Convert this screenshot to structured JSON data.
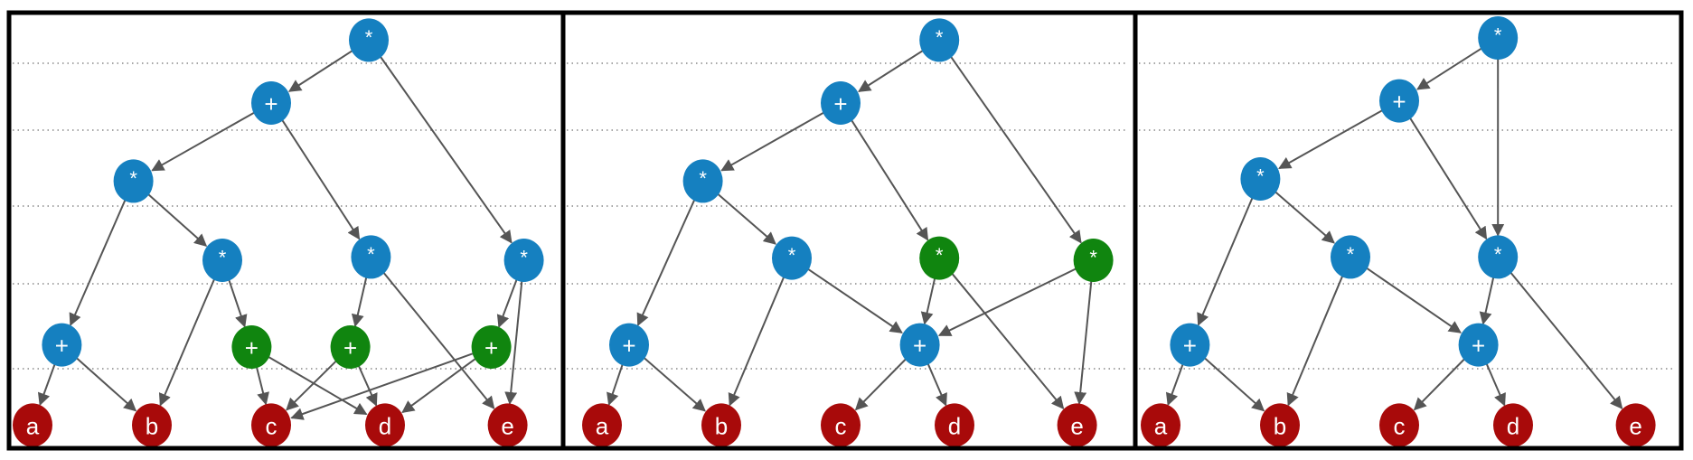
{
  "colors": {
    "op_node": "#1580c0",
    "shared_node": "#10850f",
    "leaf_node": "#a80a0a",
    "edge": "#555555",
    "gridline": "#888888",
    "frame": "#000000"
  },
  "panels": [
    {
      "nodes": [
        {
          "id": "r",
          "label": "*",
          "kind": "op"
        },
        {
          "id": "p1",
          "label": "+",
          "kind": "op"
        },
        {
          "id": "m1",
          "label": "*",
          "kind": "op"
        },
        {
          "id": "m2",
          "label": "*",
          "kind": "op"
        },
        {
          "id": "m3",
          "label": "*",
          "kind": "op"
        },
        {
          "id": "m4",
          "label": "*",
          "kind": "op"
        },
        {
          "id": "p2",
          "label": "+",
          "kind": "op"
        },
        {
          "id": "g1",
          "label": "+",
          "kind": "shared"
        },
        {
          "id": "g2",
          "label": "+",
          "kind": "shared"
        },
        {
          "id": "g3",
          "label": "+",
          "kind": "shared"
        },
        {
          "id": "a",
          "label": "a",
          "kind": "leaf"
        },
        {
          "id": "b",
          "label": "b",
          "kind": "leaf"
        },
        {
          "id": "c",
          "label": "c",
          "kind": "leaf"
        },
        {
          "id": "d",
          "label": "d",
          "kind": "leaf"
        },
        {
          "id": "e",
          "label": "e",
          "kind": "leaf"
        }
      ],
      "edges": [
        [
          "r",
          "p1"
        ],
        [
          "r",
          "m4"
        ],
        [
          "p1",
          "m1"
        ],
        [
          "p1",
          "m3"
        ],
        [
          "m1",
          "p2"
        ],
        [
          "m1",
          "m2"
        ],
        [
          "m2",
          "b"
        ],
        [
          "m2",
          "g1"
        ],
        [
          "m3",
          "g2"
        ],
        [
          "m3",
          "e"
        ],
        [
          "m4",
          "g3"
        ],
        [
          "m4",
          "e"
        ],
        [
          "p2",
          "a"
        ],
        [
          "p2",
          "b"
        ],
        [
          "g1",
          "c"
        ],
        [
          "g1",
          "d"
        ],
        [
          "g2",
          "c"
        ],
        [
          "g2",
          "d"
        ],
        [
          "g3",
          "c"
        ],
        [
          "g3",
          "d"
        ]
      ]
    },
    {
      "nodes": [
        {
          "id": "r",
          "label": "*",
          "kind": "op"
        },
        {
          "id": "p1",
          "label": "+",
          "kind": "op"
        },
        {
          "id": "m1",
          "label": "*",
          "kind": "op"
        },
        {
          "id": "m2",
          "label": "*",
          "kind": "op"
        },
        {
          "id": "m3",
          "label": "*",
          "kind": "shared"
        },
        {
          "id": "m4",
          "label": "*",
          "kind": "shared"
        },
        {
          "id": "p2",
          "label": "+",
          "kind": "op"
        },
        {
          "id": "p3",
          "label": "+",
          "kind": "op"
        },
        {
          "id": "a",
          "label": "a",
          "kind": "leaf"
        },
        {
          "id": "b",
          "label": "b",
          "kind": "leaf"
        },
        {
          "id": "c",
          "label": "c",
          "kind": "leaf"
        },
        {
          "id": "d",
          "label": "d",
          "kind": "leaf"
        },
        {
          "id": "e",
          "label": "e",
          "kind": "leaf"
        }
      ],
      "edges": [
        [
          "r",
          "p1"
        ],
        [
          "r",
          "m4"
        ],
        [
          "p1",
          "m1"
        ],
        [
          "p1",
          "m3"
        ],
        [
          "m1",
          "p2"
        ],
        [
          "m1",
          "m2"
        ],
        [
          "m2",
          "b"
        ],
        [
          "m2",
          "p3"
        ],
        [
          "m3",
          "p3"
        ],
        [
          "m3",
          "e"
        ],
        [
          "m4",
          "p3"
        ],
        [
          "m4",
          "e"
        ],
        [
          "p2",
          "a"
        ],
        [
          "p2",
          "b"
        ],
        [
          "p3",
          "c"
        ],
        [
          "p3",
          "d"
        ]
      ]
    },
    {
      "nodes": [
        {
          "id": "r",
          "label": "*",
          "kind": "op"
        },
        {
          "id": "p1",
          "label": "+",
          "kind": "op"
        },
        {
          "id": "m1",
          "label": "*",
          "kind": "op"
        },
        {
          "id": "m2",
          "label": "*",
          "kind": "op"
        },
        {
          "id": "m3",
          "label": "*",
          "kind": "op"
        },
        {
          "id": "p2",
          "label": "+",
          "kind": "op"
        },
        {
          "id": "p3",
          "label": "+",
          "kind": "op"
        },
        {
          "id": "a",
          "label": "a",
          "kind": "leaf"
        },
        {
          "id": "b",
          "label": "b",
          "kind": "leaf"
        },
        {
          "id": "c",
          "label": "c",
          "kind": "leaf"
        },
        {
          "id": "d",
          "label": "d",
          "kind": "leaf"
        },
        {
          "id": "e",
          "label": "e",
          "kind": "leaf"
        }
      ],
      "edges": [
        [
          "r",
          "p1"
        ],
        [
          "r",
          "m3"
        ],
        [
          "p1",
          "m1"
        ],
        [
          "p1",
          "m3"
        ],
        [
          "m1",
          "p2"
        ],
        [
          "m1",
          "m2"
        ],
        [
          "m2",
          "b"
        ],
        [
          "m2",
          "p3"
        ],
        [
          "m3",
          "p3"
        ],
        [
          "m3",
          "e"
        ],
        [
          "p2",
          "a"
        ],
        [
          "p2",
          "b"
        ],
        [
          "p3",
          "c"
        ],
        [
          "p3",
          "d"
        ]
      ]
    }
  ]
}
